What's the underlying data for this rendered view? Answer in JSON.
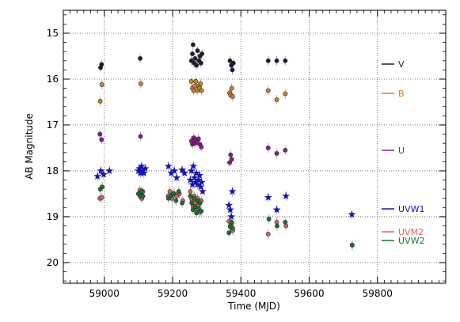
{
  "chart_data": {
    "type": "scatter",
    "xlabel": "Time (MJD)",
    "ylabel": "AB Magnitude",
    "xlim": [
      58880,
      60000
    ],
    "ylim": [
      20.45,
      14.5
    ],
    "y_inverted": true,
    "xticks": [
      59000,
      59200,
      59400,
      59600,
      59800
    ],
    "yticks": [
      15,
      16,
      17,
      18,
      19,
      20
    ],
    "grid": true,
    "legend_position": "right",
    "series": [
      {
        "name": "V",
        "color": "#1c1c3a",
        "marker": "circle",
        "points": [
          [
            58989,
            15.75
          ],
          [
            58992,
            15.68
          ],
          [
            59105,
            15.55
          ],
          [
            59255,
            15.6
          ],
          [
            59258,
            15.45
          ],
          [
            59260,
            15.25
          ],
          [
            59263,
            15.65
          ],
          [
            59266,
            15.55
          ],
          [
            59270,
            15.7
          ],
          [
            59273,
            15.38
          ],
          [
            59277,
            15.6
          ],
          [
            59280,
            15.5
          ],
          [
            59283,
            15.65
          ],
          [
            59286,
            15.45
          ],
          [
            59368,
            15.6
          ],
          [
            59372,
            15.7
          ],
          [
            59375,
            15.8
          ],
          [
            59378,
            15.65
          ],
          [
            59480,
            15.6
          ],
          [
            59505,
            15.6
          ],
          [
            59530,
            15.6
          ]
        ]
      },
      {
        "name": "B",
        "color": "#d4841c",
        "marker": "circle",
        "points": [
          [
            58988,
            16.48
          ],
          [
            58993,
            16.12
          ],
          [
            59107,
            16.1
          ],
          [
            59255,
            16.05
          ],
          [
            59258,
            16.2
          ],
          [
            59262,
            16.25
          ],
          [
            59265,
            16.15
          ],
          [
            59268,
            16.05
          ],
          [
            59272,
            16.25
          ],
          [
            59276,
            16.15
          ],
          [
            59279,
            16.2
          ],
          [
            59282,
            16.1
          ],
          [
            59285,
            16.25
          ],
          [
            59367,
            16.3
          ],
          [
            59370,
            16.35
          ],
          [
            59373,
            16.2
          ],
          [
            59376,
            16.38
          ],
          [
            59480,
            16.25
          ],
          [
            59505,
            16.45
          ],
          [
            59530,
            16.32
          ]
        ]
      },
      {
        "name": "U",
        "color": "#8c1a8c",
        "marker": "circle",
        "points": [
          [
            58987,
            17.2
          ],
          [
            58992,
            17.32
          ],
          [
            59106,
            17.25
          ],
          [
            59255,
            17.35
          ],
          [
            59258,
            17.42
          ],
          [
            59262,
            17.28
          ],
          [
            59265,
            17.4
          ],
          [
            59268,
            17.32
          ],
          [
            59272,
            17.38
          ],
          [
            59276,
            17.3
          ],
          [
            59280,
            17.42
          ],
          [
            59284,
            17.48
          ],
          [
            59367,
            17.82
          ],
          [
            59370,
            17.65
          ],
          [
            59373,
            17.75
          ],
          [
            59480,
            17.5
          ],
          [
            59505,
            17.62
          ],
          [
            59530,
            17.55
          ]
        ]
      },
      {
        "name": "UVW1",
        "color": "#1414b4",
        "marker": "star",
        "points": [
          [
            58980,
            18.12
          ],
          [
            58990,
            18.0
          ],
          [
            58998,
            18.08
          ],
          [
            59015,
            18.0
          ],
          [
            59100,
            18.0
          ],
          [
            59103,
            17.95
          ],
          [
            59106,
            18.05
          ],
          [
            59109,
            17.9
          ],
          [
            59112,
            18.0
          ],
          [
            59116,
            18.05
          ],
          [
            59120,
            17.95
          ],
          [
            59188,
            17.9
          ],
          [
            59196,
            18.05
          ],
          [
            59205,
            18.0
          ],
          [
            59212,
            18.15
          ],
          [
            59228,
            17.98
          ],
          [
            59235,
            18.05
          ],
          [
            59252,
            18.2
          ],
          [
            59255,
            18.0
          ],
          [
            59258,
            18.3
          ],
          [
            59261,
            17.9
          ],
          [
            59264,
            18.15
          ],
          [
            59267,
            18.25
          ],
          [
            59270,
            18.05
          ],
          [
            59273,
            18.3
          ],
          [
            59276,
            18.2
          ],
          [
            59279,
            18.1
          ],
          [
            59282,
            18.35
          ],
          [
            59285,
            18.25
          ],
          [
            59288,
            18.45
          ],
          [
            59365,
            18.75
          ],
          [
            59369,
            18.85
          ],
          [
            59372,
            19.0
          ],
          [
            59375,
            18.45
          ],
          [
            59480,
            18.58
          ],
          [
            59505,
            18.85
          ],
          [
            59532,
            18.55
          ],
          [
            59725,
            18.95
          ]
        ]
      },
      {
        "name": "UVM2",
        "color": "#e06060",
        "marker": "circle",
        "points": [
          [
            58987,
            18.6
          ],
          [
            58993,
            18.58
          ],
          [
            59100,
            18.5
          ],
          [
            59104,
            18.42
          ],
          [
            59107,
            18.55
          ],
          [
            59110,
            18.6
          ],
          [
            59113,
            18.45
          ],
          [
            59187,
            18.55
          ],
          [
            59192,
            18.45
          ],
          [
            59198,
            18.6
          ],
          [
            59205,
            18.5
          ],
          [
            59212,
            18.55
          ],
          [
            59220,
            18.5
          ],
          [
            59230,
            18.65
          ],
          [
            59252,
            18.45
          ],
          [
            59256,
            18.62
          ],
          [
            59260,
            18.78
          ],
          [
            59263,
            18.55
          ],
          [
            59266,
            18.7
          ],
          [
            59270,
            18.85
          ],
          [
            59273,
            18.6
          ],
          [
            59276,
            18.75
          ],
          [
            59280,
            18.9
          ],
          [
            59284,
            18.65
          ],
          [
            59365,
            19.1
          ],
          [
            59369,
            19.22
          ],
          [
            59373,
            19.15
          ],
          [
            59376,
            19.3
          ],
          [
            59480,
            19.38
          ],
          [
            59505,
            19.12
          ],
          [
            59532,
            19.2
          ],
          [
            59726,
            19.62
          ]
        ]
      },
      {
        "name": "UVW2",
        "color": "#107a30",
        "marker": "circle",
        "points": [
          [
            58988,
            18.4
          ],
          [
            58994,
            18.35
          ],
          [
            59101,
            18.5
          ],
          [
            59105,
            18.55
          ],
          [
            59109,
            18.45
          ],
          [
            59113,
            18.55
          ],
          [
            59188,
            18.6
          ],
          [
            59195,
            18.55
          ],
          [
            59202,
            18.5
          ],
          [
            59210,
            18.65
          ],
          [
            59218,
            18.45
          ],
          [
            59228,
            18.7
          ],
          [
            59252,
            18.55
          ],
          [
            59256,
            18.7
          ],
          [
            59260,
            18.85
          ],
          [
            59263,
            18.6
          ],
          [
            59266,
            18.78
          ],
          [
            59270,
            18.92
          ],
          [
            59273,
            18.65
          ],
          [
            59276,
            18.82
          ],
          [
            59280,
            18.7
          ],
          [
            59284,
            18.88
          ],
          [
            59365,
            19.35
          ],
          [
            59369,
            19.2
          ],
          [
            59373,
            19.12
          ],
          [
            59376,
            19.25
          ],
          [
            59482,
            19.05
          ],
          [
            59506,
            19.2
          ],
          [
            59530,
            19.12
          ],
          [
            59726,
            19.62
          ]
        ]
      }
    ]
  }
}
